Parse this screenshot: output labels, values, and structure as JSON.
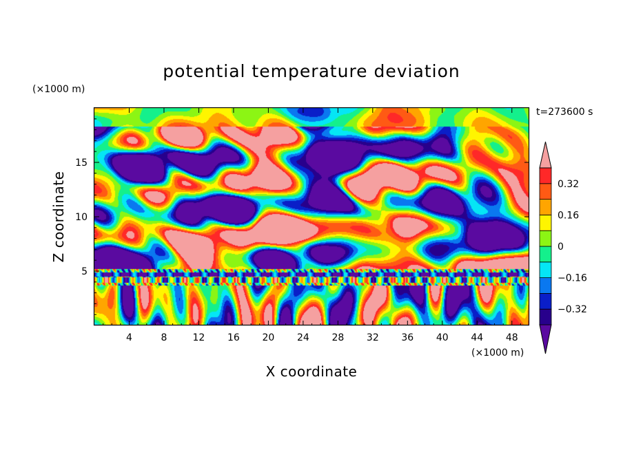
{
  "chart_data": {
    "type": "heatmap",
    "title": "potential temperature deviation",
    "xlabel": "X coordinate",
    "ylabel": "Z coordinate",
    "x_unit": "(×1000 m)",
    "y_unit": "(×1000 m)",
    "time_label": "t=273600 s",
    "xlim": [
      0,
      50
    ],
    "ylim": [
      0,
      20
    ],
    "x_ticks": [
      4,
      8,
      12,
      16,
      20,
      24,
      28,
      32,
      36,
      40,
      44,
      48
    ],
    "y_ticks": [
      5,
      10,
      15
    ],
    "colorbar": {
      "levels": [
        -0.4,
        -0.32,
        -0.24,
        -0.16,
        -0.08,
        0,
        0.08,
        0.16,
        0.24,
        0.32,
        0.4
      ],
      "labeled_levels": [
        0.32,
        0.16,
        0,
        -0.16,
        -0.32
      ],
      "labels": [
        "0.32",
        "0.16",
        "0",
        "−0.16",
        "−0.32"
      ],
      "colors_low_to_high": [
        "#5a0aa0",
        "#28008c",
        "#0a1ec8",
        "#0a78f0",
        "#05e6f5",
        "#14f08c",
        "#8cf514",
        "#fff500",
        "#ffa500",
        "#ff5a14",
        "#ff2828",
        "#f5a0a0"
      ]
    }
  }
}
